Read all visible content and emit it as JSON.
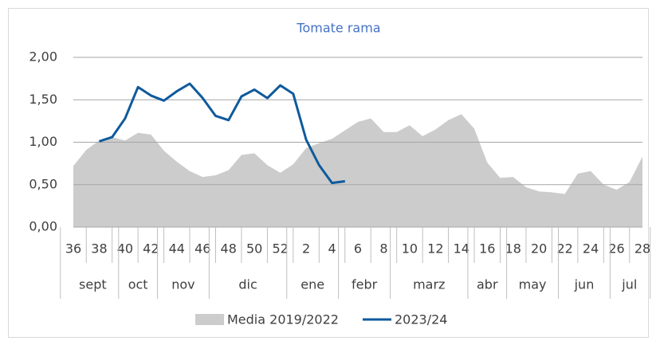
{
  "chart_data": {
    "type": "area_line",
    "title": "Tomate rama",
    "categories": [
      36,
      null,
      38,
      null,
      40,
      null,
      42,
      null,
      44,
      null,
      46,
      null,
      48,
      null,
      50,
      null,
      52,
      null,
      2,
      null,
      4,
      null,
      6,
      null,
      8,
      null,
      10,
      null,
      12,
      null,
      14,
      null,
      16,
      null,
      18,
      null,
      20,
      null,
      22,
      null,
      24,
      null,
      26,
      null,
      28
    ],
    "month_groups": [
      {
        "label": "sept",
        "span": 4
      },
      {
        "label": "oct",
        "span": 3
      },
      {
        "label": "nov",
        "span": 4
      },
      {
        "label": "dic",
        "span": 6
      },
      {
        "label": "ene",
        "span": 4
      },
      {
        "label": "febr",
        "span": 4
      },
      {
        "label": "marz",
        "span": 6
      },
      {
        "label": "abr",
        "span": 3
      },
      {
        "label": "may",
        "span": 4
      },
      {
        "label": "jun",
        "span": 4
      },
      {
        "label": "jul",
        "span": 3
      }
    ],
    "series": [
      {
        "name": "Media 2019/2022",
        "kind": "area",
        "color": "#cccccc",
        "values": [
          0.72,
          0.91,
          1.02,
          1.06,
          1.02,
          1.11,
          1.09,
          0.9,
          0.77,
          0.66,
          0.59,
          0.61,
          0.67,
          0.85,
          0.87,
          0.73,
          0.64,
          0.74,
          0.93,
          0.99,
          1.04,
          1.14,
          1.24,
          1.28,
          1.12,
          1.12,
          1.2,
          1.07,
          1.15,
          1.26,
          1.33,
          1.16,
          0.76,
          0.58,
          0.59,
          0.47,
          0.42,
          0.41,
          0.39,
          0.63,
          0.66,
          0.5,
          0.44,
          0.53,
          0.83
        ]
      },
      {
        "name": "2023/24",
        "kind": "line",
        "color": "#0f5a9c",
        "values": [
          null,
          null,
          1.01,
          1.06,
          1.28,
          1.65,
          1.55,
          1.49,
          1.6,
          1.69,
          1.52,
          1.31,
          1.26,
          1.54,
          1.62,
          1.52,
          1.67,
          1.57,
          1.03,
          0.73,
          0.52,
          0.54,
          null,
          null,
          null,
          null,
          null,
          null,
          null,
          null,
          null,
          null,
          null,
          null,
          null,
          null,
          null,
          null,
          null,
          null,
          null,
          null,
          null,
          null,
          null
        ]
      }
    ],
    "ylim": [
      0,
      2
    ],
    "yticks": [
      {
        "value": 0,
        "label": "0,00"
      },
      {
        "value": 0.5,
        "label": "0,50"
      },
      {
        "value": 1,
        "label": "1,00"
      },
      {
        "value": 1.5,
        "label": "1,50"
      },
      {
        "value": 2,
        "label": "2,00"
      }
    ],
    "grid": true
  }
}
